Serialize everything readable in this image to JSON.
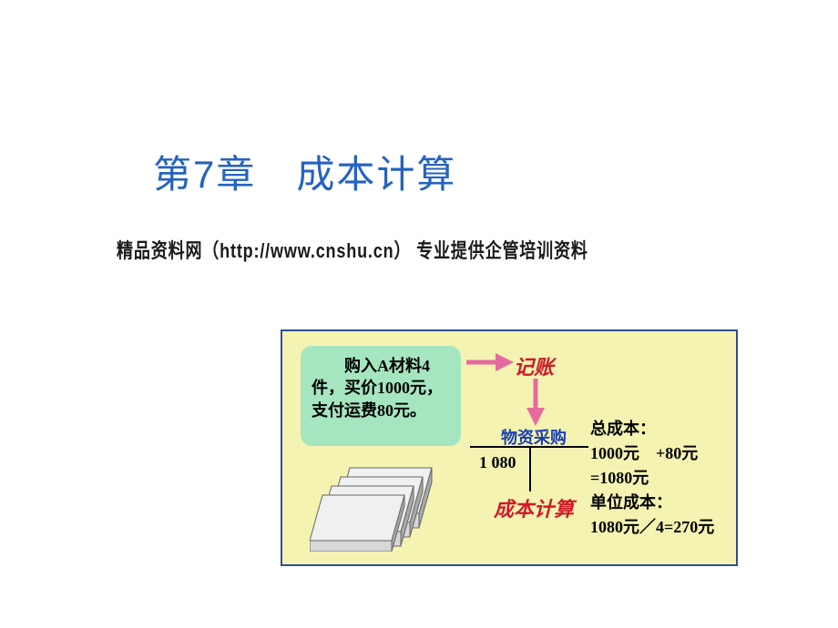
{
  "title": "第7章　成本计算",
  "subtitle": "精品资料网（http://www.cnshu.cn） 专业提供企管培训资料",
  "diagram": {
    "frame_bg": "#f5f3b2",
    "frame_border": "#2f4f8f",
    "green_box": {
      "bg": "#a5e6c0",
      "text": "　　购入A材料4件，买价1000元，支付运费80元。"
    },
    "label_record": "记账",
    "label_procure": "物资采购",
    "t_value": "1 080",
    "label_cost": "成本计算",
    "result": "总成本：\n1000元　+80元=1080元\n单位成本：\n1080元／4=270元",
    "arrow_color": "#e66aa0",
    "red_text_color": "#d11a2a",
    "blue_text_color": "#1a3fb0",
    "material_colors": {
      "face": "#d8d8d8",
      "side": "#a8a8a8",
      "top": "#f0f0f0",
      "stroke": "#666666"
    }
  }
}
